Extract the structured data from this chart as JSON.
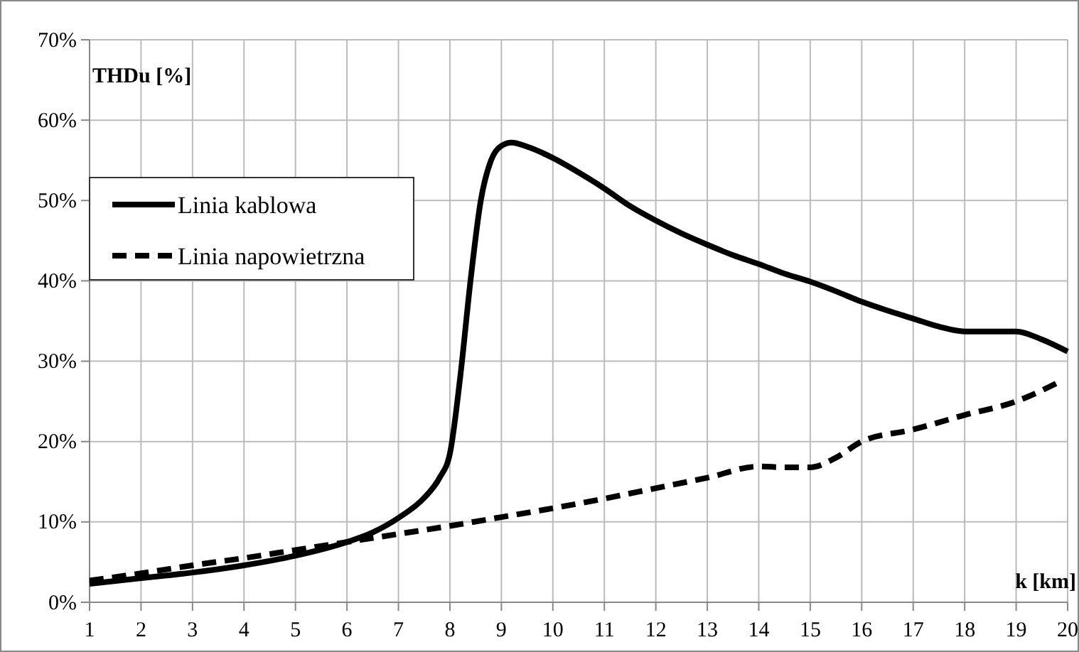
{
  "chart_data": {
    "type": "line",
    "xlabel": "k [km]",
    "ylabel": "THDu [%]",
    "xlim": [
      1,
      20
    ],
    "xticks": [
      1,
      2,
      3,
      4,
      5,
      6,
      7,
      8,
      9,
      10,
      11,
      12,
      13,
      14,
      15,
      16,
      17,
      18,
      19,
      20
    ],
    "ylim": [
      0,
      70
    ],
    "yticks": [
      {
        "value": 0,
        "label": "0%"
      },
      {
        "value": 10,
        "label": "10%"
      },
      {
        "value": 20,
        "label": "20%"
      },
      {
        "value": 30,
        "label": "30%"
      },
      {
        "value": 40,
        "label": "40%"
      },
      {
        "value": 50,
        "label": "50%"
      },
      {
        "value": 60,
        "label": "60%"
      },
      {
        "value": 70,
        "label": "70%"
      }
    ],
    "grid": true,
    "legend": "top left",
    "marker": "none",
    "series": [
      {
        "name": "Linia kablowa",
        "color": "#000000",
        "line_style": "solid",
        "x": [
          1,
          2,
          3,
          4,
          5,
          6,
          6.5,
          7,
          7.5,
          7.8,
          8,
          8.2,
          8.4,
          8.6,
          8.8,
          9,
          9.2,
          9.5,
          10,
          10.5,
          11,
          11.5,
          12,
          12.5,
          13,
          13.5,
          14,
          14.5,
          15,
          15.5,
          16,
          16.5,
          17,
          17.5,
          18,
          18.5,
          19,
          19.5,
          20
        ],
        "values": [
          2.3,
          3.0,
          3.7,
          4.6,
          5.8,
          7.5,
          8.7,
          10.5,
          13,
          15.5,
          18.5,
          28,
          40,
          50,
          55,
          56.8,
          57.2,
          56.7,
          55.3,
          53.5,
          51.5,
          49.3,
          47.5,
          45.9,
          44.5,
          43.2,
          42.1,
          40.9,
          39.9,
          38.7,
          37.4,
          36.3,
          35.3,
          34.3,
          33.7,
          33.7,
          33.7,
          32.7,
          31.2
        ]
      },
      {
        "name": "Linia napowietrzna",
        "color": "#000000",
        "line_style": "dashed",
        "x": [
          1,
          2,
          3,
          4,
          5,
          6,
          7,
          8,
          9,
          10,
          11,
          12,
          13,
          14,
          14.5,
          15,
          15.5,
          16,
          17,
          18,
          19,
          19.8
        ],
        "values": [
          2.7,
          3.6,
          4.6,
          5.5,
          6.5,
          7.5,
          8.5,
          9.5,
          10.6,
          11.7,
          12.9,
          14.2,
          15.5,
          16.9,
          16.8,
          16.8,
          18,
          20,
          21.5,
          23.3,
          25,
          27.3
        ]
      }
    ]
  }
}
